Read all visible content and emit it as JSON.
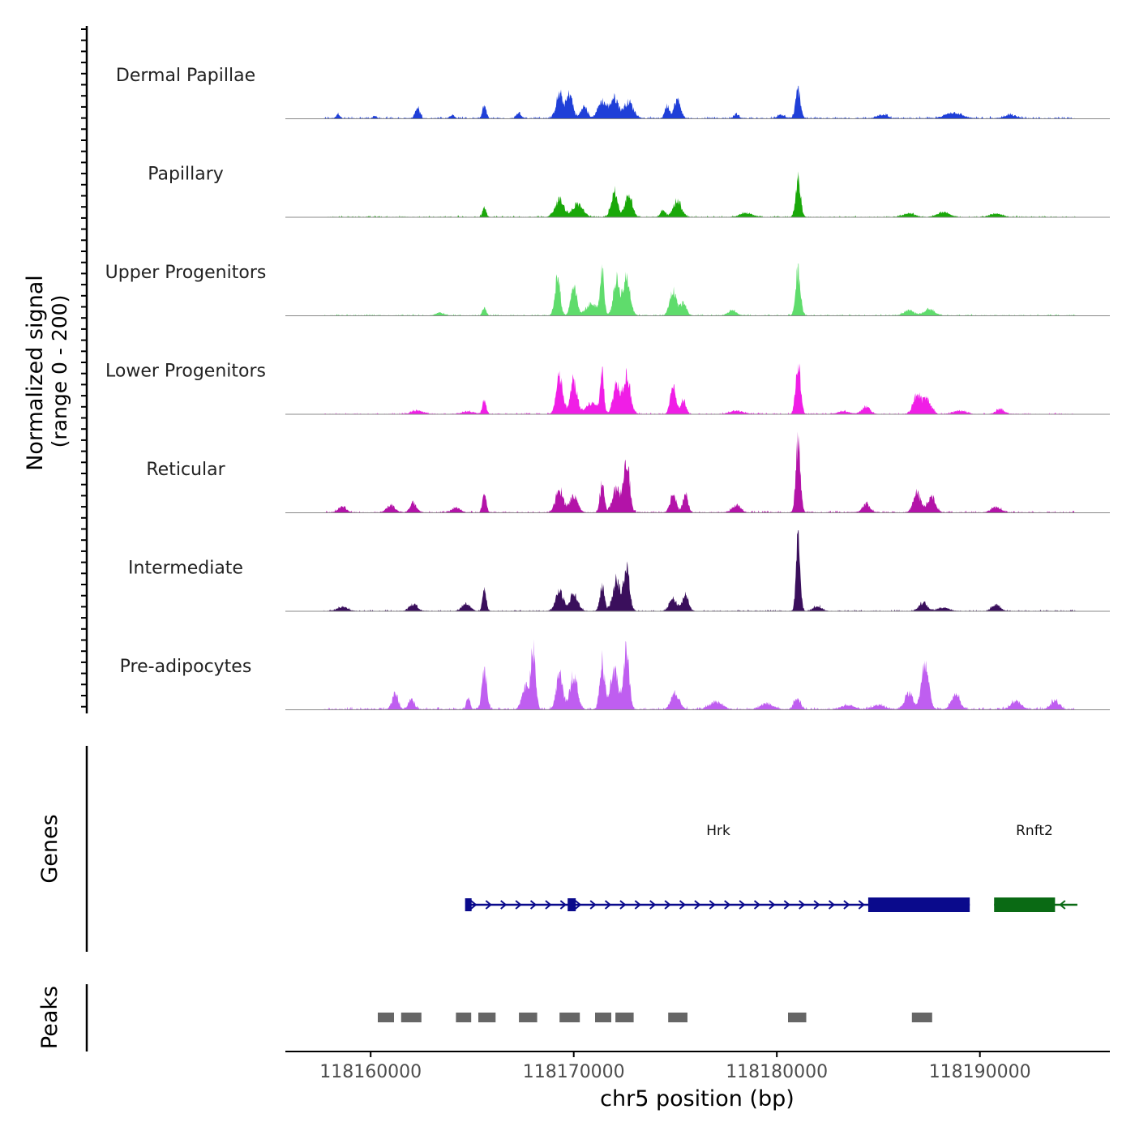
{
  "chart_data": {
    "type": "area",
    "title": "",
    "ylabel_line1": "Normalized signal",
    "ylabel_line2": "(range 0 - 200)",
    "xlabel": "chr5 position (bp)",
    "y_range": [
      0,
      200
    ],
    "x_range": [
      118155800,
      118196400
    ],
    "x_ticks": [
      118160000,
      118170000,
      118180000,
      118190000
    ],
    "x_tick_labels": [
      "118160000",
      "118170000",
      "118180000",
      "118190000"
    ],
    "tracks": [
      {
        "name": "Dermal Papillae",
        "color": "#1f3fd8",
        "peaks": [
          [
            118158400,
            12,
            90
          ],
          [
            118160200,
            6,
            90
          ],
          [
            118162300,
            28,
            110
          ],
          [
            118164000,
            8,
            120
          ],
          [
            118165600,
            32,
            90
          ],
          [
            118167300,
            14,
            120
          ],
          [
            118169300,
            58,
            170
          ],
          [
            118169800,
            60,
            150
          ],
          [
            118170500,
            28,
            160
          ],
          [
            118171400,
            42,
            210
          ],
          [
            118172000,
            50,
            190
          ],
          [
            118172700,
            40,
            230
          ],
          [
            118174600,
            32,
            110
          ],
          [
            118175100,
            45,
            160
          ],
          [
            118178000,
            10,
            120
          ],
          [
            118180200,
            8,
            180
          ],
          [
            118181050,
            70,
            120
          ],
          [
            118185200,
            8,
            250
          ],
          [
            118188700,
            14,
            400
          ],
          [
            118191500,
            8,
            300
          ]
        ],
        "noise": 6
      },
      {
        "name": "Papillary",
        "color": "#1aa80a",
        "peaks": [
          [
            118165600,
            24,
            90
          ],
          [
            118169300,
            42,
            220
          ],
          [
            118170200,
            32,
            250
          ],
          [
            118172000,
            62,
            160
          ],
          [
            118172700,
            56,
            170
          ],
          [
            118175100,
            40,
            200
          ],
          [
            118174400,
            18,
            120
          ],
          [
            118181050,
            92,
            120
          ],
          [
            118178500,
            10,
            300
          ],
          [
            118186500,
            8,
            300
          ],
          [
            118188200,
            12,
            300
          ],
          [
            118190800,
            8,
            300
          ]
        ],
        "noise": 4
      },
      {
        "name": "Upper Progenitors",
        "color": "#5fdc6c",
        "peaks": [
          [
            118165600,
            22,
            90
          ],
          [
            118169200,
            95,
            130
          ],
          [
            118170000,
            78,
            140
          ],
          [
            118170900,
            28,
            300
          ],
          [
            118171400,
            112,
            90
          ],
          [
            118172100,
            86,
            150
          ],
          [
            118172600,
            90,
            180
          ],
          [
            118174900,
            58,
            170
          ],
          [
            118175400,
            30,
            150
          ],
          [
            118181050,
            108,
            120
          ],
          [
            118177800,
            12,
            200
          ],
          [
            118186500,
            12,
            250
          ],
          [
            118187500,
            16,
            250
          ],
          [
            118163400,
            6,
            200
          ]
        ],
        "noise": 4
      },
      {
        "name": "Lower Progenitors",
        "color": "#f01ee6",
        "peaks": [
          [
            118165600,
            34,
            90
          ],
          [
            118169300,
            90,
            160
          ],
          [
            118170000,
            82,
            160
          ],
          [
            118170900,
            26,
            300
          ],
          [
            118171400,
            96,
            90
          ],
          [
            118172100,
            74,
            160
          ],
          [
            118172600,
            96,
            180
          ],
          [
            118174900,
            66,
            140
          ],
          [
            118175400,
            34,
            120
          ],
          [
            118181050,
            122,
            120
          ],
          [
            118184400,
            18,
            200
          ],
          [
            118186900,
            46,
            190
          ],
          [
            118187400,
            36,
            200
          ],
          [
            118162300,
            8,
            300
          ],
          [
            118164800,
            6,
            300
          ],
          [
            118178000,
            8,
            300
          ],
          [
            118183300,
            6,
            300
          ],
          [
            118189000,
            8,
            300
          ],
          [
            118191000,
            12,
            200
          ]
        ],
        "noise": 4
      },
      {
        "name": "Reticular",
        "color": "#b313a8",
        "peaks": [
          [
            118158600,
            14,
            200
          ],
          [
            118161000,
            18,
            200
          ],
          [
            118162100,
            22,
            160
          ],
          [
            118164200,
            12,
            200
          ],
          [
            118165600,
            48,
            90
          ],
          [
            118169300,
            54,
            190
          ],
          [
            118170000,
            40,
            200
          ],
          [
            118171400,
            78,
            100
          ],
          [
            118172100,
            56,
            200
          ],
          [
            118172600,
            138,
            140
          ],
          [
            118174900,
            46,
            150
          ],
          [
            118175500,
            44,
            120
          ],
          [
            118178000,
            18,
            200
          ],
          [
            118181050,
            180,
            110
          ],
          [
            118184400,
            20,
            180
          ],
          [
            118186900,
            48,
            180
          ],
          [
            118187600,
            38,
            200
          ],
          [
            118190800,
            12,
            250
          ]
        ],
        "noise": 5
      },
      {
        "name": "Intermediate",
        "color": "#3a0f5c",
        "peaks": [
          [
            118158600,
            10,
            250
          ],
          [
            118162100,
            16,
            200
          ],
          [
            118164700,
            18,
            200
          ],
          [
            118165600,
            52,
            90
          ],
          [
            118169300,
            52,
            180
          ],
          [
            118170000,
            42,
            200
          ],
          [
            118171400,
            60,
            110
          ],
          [
            118172100,
            78,
            180
          ],
          [
            118172600,
            112,
            140
          ],
          [
            118174900,
            30,
            180
          ],
          [
            118175500,
            40,
            150
          ],
          [
            118181050,
            172,
            100
          ],
          [
            118182000,
            12,
            200
          ],
          [
            118187200,
            20,
            200
          ],
          [
            118190800,
            16,
            200
          ],
          [
            118188200,
            8,
            300
          ]
        ],
        "noise": 4
      },
      {
        "name": "Pre-adipocytes",
        "color": "#bf5ef0",
        "peaks": [
          [
            118161200,
            34,
            150
          ],
          [
            118162000,
            22,
            150
          ],
          [
            118164800,
            30,
            90
          ],
          [
            118165600,
            90,
            120
          ],
          [
            118167600,
            56,
            160
          ],
          [
            118168000,
            140,
            120
          ],
          [
            118169300,
            82,
            160
          ],
          [
            118170000,
            86,
            180
          ],
          [
            118171400,
            118,
            120
          ],
          [
            118172000,
            90,
            200
          ],
          [
            118172600,
            148,
            130
          ],
          [
            118175000,
            40,
            200
          ],
          [
            118177000,
            18,
            300
          ],
          [
            118181000,
            28,
            150
          ],
          [
            118186500,
            40,
            200
          ],
          [
            118187300,
            102,
            180
          ],
          [
            118188800,
            36,
            200
          ],
          [
            118191800,
            20,
            250
          ],
          [
            118193700,
            22,
            200
          ],
          [
            118179500,
            14,
            300
          ],
          [
            118183500,
            10,
            300
          ],
          [
            118185000,
            10,
            300
          ]
        ],
        "noise": 7
      }
    ],
    "genes": [
      {
        "name": "Hrk",
        "start": 118164700,
        "end": 118189500,
        "strand": "+",
        "color": "#0a0a8c"
      },
      {
        "name": "Rnft2",
        "start": 118190700,
        "end": 118194800,
        "strand": "-",
        "color": "#0a6a14"
      }
    ],
    "gene_panel_label": "Genes",
    "peaks_panel_label": "Peaks",
    "peak_regions": [
      [
        118160350,
        118161150
      ],
      [
        118161500,
        118162500
      ],
      [
        118164200,
        118164950
      ],
      [
        118165300,
        118166150
      ],
      [
        118167300,
        118168200
      ],
      [
        118169300,
        118170300
      ],
      [
        118171050,
        118171850
      ],
      [
        118172050,
        118172950
      ],
      [
        118174650,
        118175600
      ],
      [
        118180550,
        118181450
      ],
      [
        118186650,
        118187650
      ]
    ],
    "peak_color": "#666666"
  }
}
